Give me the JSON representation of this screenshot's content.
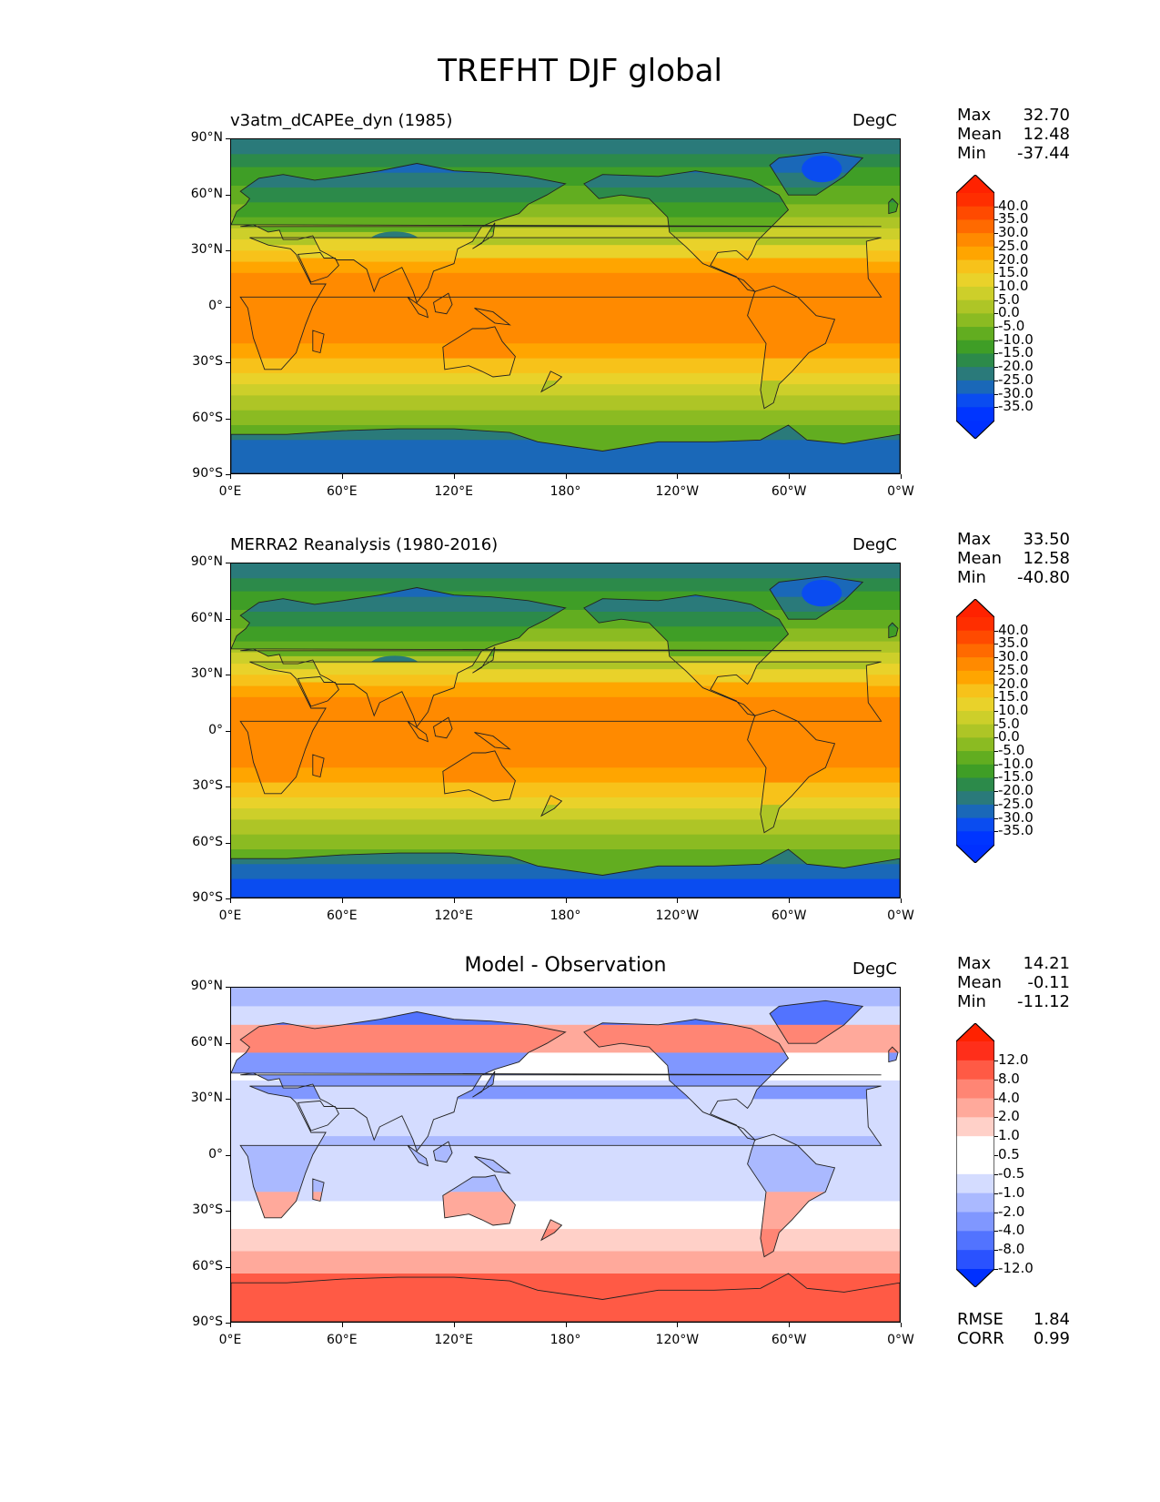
{
  "title": "TREFHT DJF global",
  "y_ticks": [
    "90°N",
    "60°N",
    "30°N",
    "0°",
    "30°S",
    "60°S",
    "90°S"
  ],
  "x_ticks": [
    "0°E",
    "60°E",
    "120°E",
    "180°",
    "120°W",
    "60°W",
    "0°W"
  ],
  "panels": [
    {
      "title": "v3atm_dCAPEe_dyn (1985)",
      "units": "DegC",
      "stats": [
        {
          "label": "Max",
          "value": "32.70"
        },
        {
          "label": "Mean",
          "value": "12.48"
        },
        {
          "label": "Min",
          "value": "-37.44"
        }
      ],
      "colorbar": {
        "labels": [
          "40.0",
          "35.0",
          "30.0",
          "25.0",
          "20.0",
          "15.0",
          "10.0",
          "5.0",
          "0.0",
          "-5.0",
          "-10.0",
          "-15.0",
          "-20.0",
          "-25.0",
          "-30.0",
          "-35.0"
        ],
        "colors": [
          "#ff2e00",
          "#ff4a00",
          "#ff6a00",
          "#ff8a00",
          "#ffa500",
          "#f7c21a",
          "#e9d22a",
          "#cdcf2a",
          "#aec526",
          "#8bbb22",
          "#62ad20",
          "#3f9e26",
          "#2c8a4a",
          "#2a7a7a",
          "#1a68b8",
          "#0a4cf0",
          "#0035ff"
        ],
        "over": "#ff2200",
        "under": "#0030ff"
      },
      "field": "model"
    },
    {
      "title": "MERRA2 Reanalysis (1980-2016)",
      "units": "DegC",
      "stats": [
        {
          "label": "Max",
          "value": "33.50"
        },
        {
          "label": "Mean",
          "value": "12.58"
        },
        {
          "label": "Min",
          "value": "-40.80"
        }
      ],
      "colorbar": {
        "labels": [
          "40.0",
          "35.0",
          "30.0",
          "25.0",
          "20.0",
          "15.0",
          "10.0",
          "5.0",
          "0.0",
          "-5.0",
          "-10.0",
          "-15.0",
          "-20.0",
          "-25.0",
          "-30.0",
          "-35.0"
        ],
        "colors": [
          "#ff2e00",
          "#ff4a00",
          "#ff6a00",
          "#ff8a00",
          "#ffa500",
          "#f7c21a",
          "#e9d22a",
          "#cdcf2a",
          "#aec526",
          "#8bbb22",
          "#62ad20",
          "#3f9e26",
          "#2c8a4a",
          "#2a7a7a",
          "#1a68b8",
          "#0a4cf0",
          "#0035ff"
        ],
        "over": "#ff2200",
        "under": "#0030ff"
      },
      "field": "obs"
    },
    {
      "title": "Model - Observation",
      "units": "DegC",
      "stats": [
        {
          "label": "Max",
          "value": "14.21"
        },
        {
          "label": "Mean",
          "value": "-0.11"
        },
        {
          "label": "Min",
          "value": "-11.12"
        }
      ],
      "colorbar": {
        "labels": [
          "12.0",
          "8.0",
          "4.0",
          "2.0",
          "1.0",
          "0.5",
          "-0.5",
          "-1.0",
          "-2.0",
          "-4.0",
          "-8.0",
          "-12.0"
        ],
        "colors": [
          "#ff2e1a",
          "#ff5a45",
          "#ff8574",
          "#ffa99b",
          "#ffd0c8",
          "#ffffff",
          "#ffffff",
          "#d4dcff",
          "#aab9ff",
          "#8097ff",
          "#5273ff",
          "#2a52ff"
        ],
        "over": "#ff2200",
        "under": "#0030ff"
      },
      "extra_stats": [
        {
          "label": "RMSE",
          "value": "1.84"
        },
        {
          "label": "CORR",
          "value": "0.99"
        }
      ],
      "field": "diff"
    }
  ]
}
